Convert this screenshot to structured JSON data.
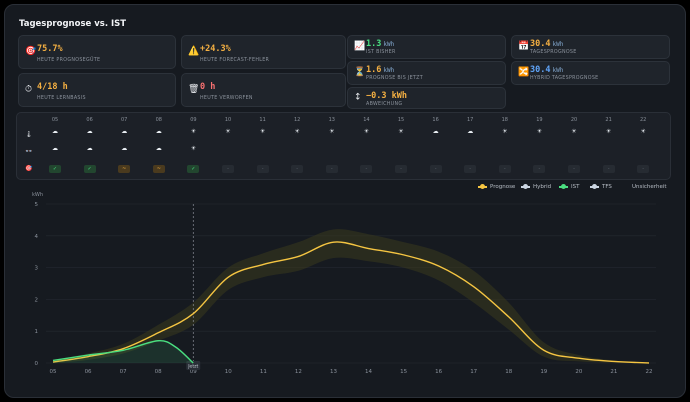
{
  "title": "Tagesprognose vs. IST",
  "cards": [
    {
      "icon": "target-icon",
      "glyph": "🎯",
      "value": "75.7%",
      "unit": "",
      "label": "HEUTE PROGNOSEGÜTE",
      "color": "#f5b042"
    },
    {
      "icon": "warning-icon",
      "glyph": "⚠️",
      "value": "+24.3%",
      "unit": "",
      "label": "HEUTE FORECAST-FEHLER",
      "color": "#f5b042"
    },
    {
      "icon": "stopwatch-icon",
      "glyph": "⏱",
      "value": "4/18 h",
      "unit": "",
      "label": "HEUTE LERNBASIS",
      "color": "#f5b042"
    },
    {
      "icon": "trash-icon",
      "glyph": "🗑",
      "value": "0 h",
      "unit": "",
      "label": "HEUTE VERWORFEN",
      "color": "#f87171"
    },
    {
      "icon": "chart-up-icon",
      "glyph": "📈",
      "value": "1.3",
      "unit": "kWh",
      "label": "IST BISHER",
      "color": "#4ade80"
    },
    {
      "icon": "calendar-icon",
      "glyph": "📅",
      "value": "30.4",
      "unit": "kWh",
      "label": "TAGESPROGNOSE",
      "color": "#f5b042"
    },
    {
      "icon": "hourglass-icon",
      "glyph": "⏳",
      "value": "1.6",
      "unit": "kWh",
      "label": "PROGNOSE BIS JETZT",
      "color": "#f5b042"
    },
    {
      "icon": "hybrid-icon",
      "glyph": "🔀",
      "value": "30.4",
      "unit": "kWh",
      "label": "HYBRID TAGESPROGNOSE",
      "color": "#60a5fa"
    },
    {
      "icon": "updown-icon",
      "glyph": "↕",
      "value": "−0.3 kWh",
      "unit": "",
      "label": "ABWEICHUNG",
      "color": "#f5b042"
    }
  ],
  "weather": {
    "hours": [
      "05",
      "06",
      "07",
      "08",
      "09",
      "10",
      "11",
      "12",
      "13",
      "14",
      "15",
      "16",
      "17",
      "18",
      "19",
      "20",
      "21",
      "22"
    ],
    "row_icons": [
      "🌡",
      "👓",
      "🎯"
    ],
    "row1": [
      "☁",
      "☁",
      "☁",
      "☁",
      "☀",
      "☀",
      "☀",
      "☀",
      "☀",
      "☀",
      "☀",
      "☁",
      "☁",
      "☀",
      "☀",
      "☀",
      "☀",
      "☀"
    ],
    "row2": [
      "☁",
      "☁",
      "☁",
      "☁",
      "☀",
      "",
      "",
      "",
      "",
      "",
      "",
      "",
      "",
      "",
      "",
      "",
      "",
      ""
    ],
    "badges": [
      "ok",
      "ok",
      "warn",
      "warn",
      "ok",
      "off",
      "off",
      "off",
      "off",
      "off",
      "off",
      "off",
      "off",
      "off",
      "off",
      "off",
      "off",
      "off"
    ],
    "badge_glyphs": {
      "ok": "✓",
      "warn": "~",
      "off": "-"
    }
  },
  "legend": [
    {
      "label": "Prognose",
      "color": "#f5c542"
    },
    {
      "label": "Hybrid",
      "color": "#cbd5e1"
    },
    {
      "label": "IST",
      "color": "#4ade80"
    },
    {
      "label": "TFS",
      "color": "#cbd5e1"
    },
    {
      "label": "Unsicherheit",
      "color": ""
    }
  ],
  "chart_data": {
    "type": "line",
    "ylabel": "kWh",
    "ylim": [
      0,
      5
    ],
    "yticks": [
      0,
      1,
      2,
      3,
      4,
      5
    ],
    "x": [
      5,
      6,
      7,
      8,
      9,
      10,
      11,
      12,
      13,
      14,
      15,
      16,
      17,
      18,
      19,
      20,
      21,
      22
    ],
    "xtick_labels": [
      "05",
      "06",
      "07",
      "08",
      "09",
      "10",
      "11",
      "12",
      "13",
      "14",
      "15",
      "16",
      "17",
      "18",
      "19",
      "20",
      "21",
      "22"
    ],
    "now_label": "Jetzt",
    "now_x": 9.0,
    "series": [
      {
        "name": "Prognose",
        "color": "#f5c542",
        "x": [
          5,
          6,
          7,
          8,
          9,
          10,
          11,
          12,
          13,
          14,
          15,
          16,
          17,
          18,
          19,
          20,
          21,
          22
        ],
        "values": [
          0.03,
          0.2,
          0.45,
          0.95,
          1.55,
          2.7,
          3.1,
          3.35,
          3.8,
          3.6,
          3.4,
          3.05,
          2.4,
          1.45,
          0.4,
          0.15,
          0.05,
          0.0
        ]
      },
      {
        "name": "IST",
        "color": "#4ade80",
        "x": [
          5,
          6,
          7,
          8,
          8.5,
          9
        ],
        "values": [
          0.08,
          0.25,
          0.4,
          0.7,
          0.5,
          0.0
        ]
      }
    ],
    "band": {
      "x": [
        5,
        6,
        7,
        8,
        9,
        10,
        11,
        12,
        13,
        14,
        15,
        16,
        17,
        18,
        19,
        20,
        21,
        22
      ],
      "upper": [
        0.1,
        0.3,
        0.6,
        1.2,
        1.9,
        3.0,
        3.45,
        3.8,
        4.2,
        4.05,
        3.8,
        3.5,
        2.9,
        1.9,
        0.65,
        0.25,
        0.08,
        0.02
      ],
      "lower": [
        0.0,
        0.1,
        0.3,
        0.7,
        1.2,
        2.3,
        2.7,
        2.9,
        3.3,
        3.2,
        3.0,
        2.6,
        1.9,
        1.05,
        0.2,
        0.05,
        0.01,
        0.0
      ]
    }
  }
}
